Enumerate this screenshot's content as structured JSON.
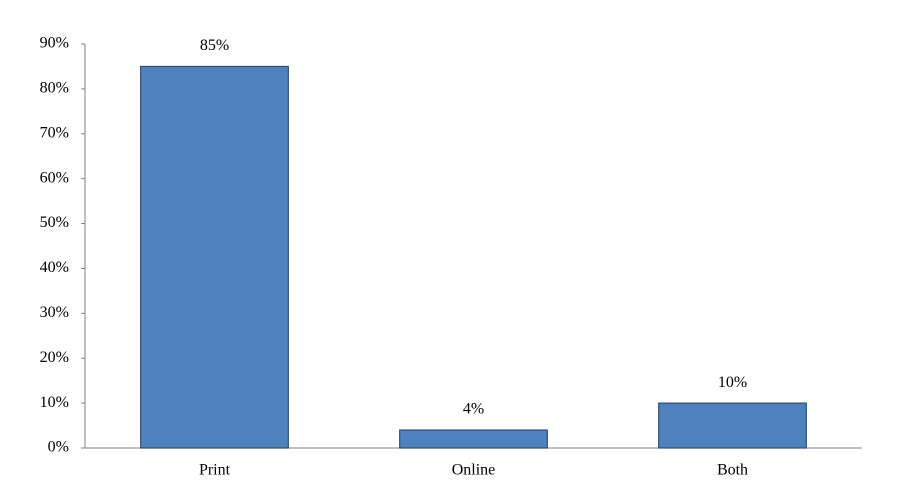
{
  "chart_data": {
    "type": "bar",
    "categories": [
      "Print",
      "Online",
      "Both"
    ],
    "values": [
      85,
      4,
      10
    ],
    "value_labels": [
      "85%",
      "4%",
      "10%"
    ],
    "color": "#4f81bd",
    "ylim": [
      0,
      90
    ],
    "yticks": [
      {
        "value": 0,
        "label": "0%"
      },
      {
        "value": 10,
        "label": "10%"
      },
      {
        "value": 20,
        "label": "20%"
      },
      {
        "value": 30,
        "label": "30%"
      },
      {
        "value": 40,
        "label": "40%"
      },
      {
        "value": 50,
        "label": "50%"
      },
      {
        "value": 60,
        "label": "60%"
      },
      {
        "value": 70,
        "label": "70%"
      },
      {
        "value": 80,
        "label": "80%"
      },
      {
        "value": 90,
        "label": "90%"
      }
    ],
    "grid": false
  }
}
